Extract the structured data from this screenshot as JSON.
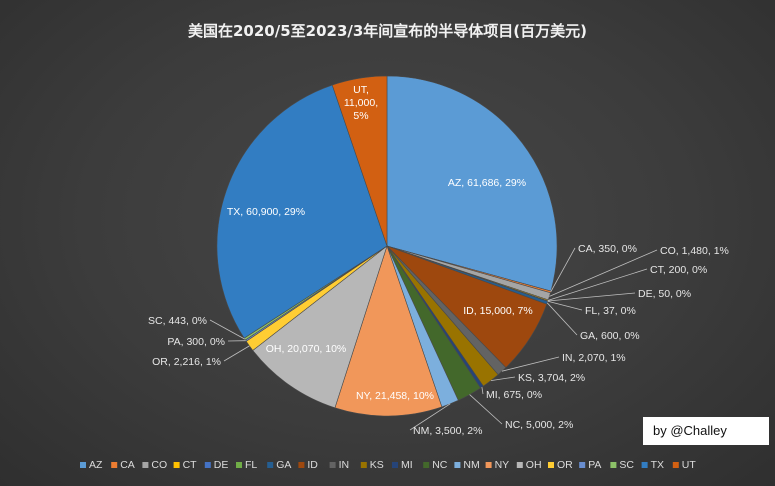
{
  "chart_data": {
    "type": "pie",
    "title": "美国在2020/5至2023/3年间宣布的半导体项目(百万美元)",
    "slices": [
      {
        "name": "AZ",
        "value": 61686,
        "pct": "29%",
        "color": "#5b9bd5"
      },
      {
        "name": "CA",
        "value": 350,
        "pct": "0%",
        "color": "#ed7d31"
      },
      {
        "name": "CO",
        "value": 1480,
        "pct": "1%",
        "color": "#a5a5a5"
      },
      {
        "name": "CT",
        "value": 200,
        "pct": "0%",
        "color": "#ffc000"
      },
      {
        "name": "DE",
        "value": 50,
        "pct": "0%",
        "color": "#4472c4"
      },
      {
        "name": "FL",
        "value": 37,
        "pct": "0%",
        "color": "#70ad47"
      },
      {
        "name": "GA",
        "value": 600,
        "pct": "0%",
        "color": "#255e91"
      },
      {
        "name": "ID",
        "value": 15000,
        "pct": "7%",
        "color": "#9e480e"
      },
      {
        "name": "IN",
        "value": 2070,
        "pct": "1%",
        "color": "#636363"
      },
      {
        "name": "KS",
        "value": 3704,
        "pct": "2%",
        "color": "#997300"
      },
      {
        "name": "MI",
        "value": 675,
        "pct": "0%",
        "color": "#264478"
      },
      {
        "name": "NC",
        "value": 5000,
        "pct": "2%",
        "color": "#43682b"
      },
      {
        "name": "NM",
        "value": 3500,
        "pct": "2%",
        "color": "#7cafdd"
      },
      {
        "name": "NY",
        "value": 21458,
        "pct": "10%",
        "color": "#f1975a"
      },
      {
        "name": "OH",
        "value": 20070,
        "pct": "10%",
        "color": "#b7b7b7"
      },
      {
        "name": "OR",
        "value": 2216,
        "pct": "1%",
        "color": "#ffcd33"
      },
      {
        "name": "PA",
        "value": 300,
        "pct": "0%",
        "color": "#698ed0"
      },
      {
        "name": "SC",
        "value": 443,
        "pct": "0%",
        "color": "#8cc168"
      },
      {
        "name": "TX",
        "value": 60900,
        "pct": "29%",
        "color": "#327dc2"
      },
      {
        "name": "UT",
        "value": 11000,
        "pct": "5%",
        "color": "#d26012"
      }
    ],
    "data_labels": [
      "AZ, 61,686, 29%",
      "CA, 350, 0%",
      "CO, 1,480, 1%",
      "CT, 200, 0%",
      "DE, 50, 0%",
      "FL, 37, 0%",
      "GA, 600, 0%",
      "ID, 15,000, 7%",
      "IN, 2,070, 1%",
      "KS, 3,704, 2%",
      "MI, 675, 0%",
      "NC, 5,000, 2%",
      "NM, 3,500, 2%",
      "NY, 21,458, 10%",
      "OH, 20,070, 10%",
      "OR, 2,216, 1%",
      "PA, 300, 0%",
      "SC, 443, 0%",
      "TX, 60,900, 29%",
      "UT, 11,000, 5%"
    ],
    "legend_position": "bottom",
    "start_angle": "12 o'clock, clockwise"
  },
  "credit": "by @Challey"
}
